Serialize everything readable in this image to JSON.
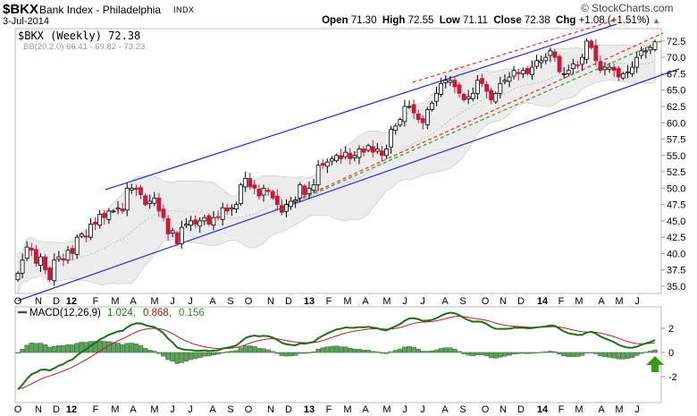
{
  "header": {
    "symbol": "$BKX",
    "name": "Bank Index - Philadelphia",
    "exchange": "INDX",
    "date": "3-Jul-2014",
    "open_label": "Open",
    "open": "71.30",
    "high_label": "High",
    "high": "72.55",
    "low_label": "Low",
    "low": "71.11",
    "close_label": "Close",
    "close": "72.38",
    "chg_label": "Chg",
    "chg": "+1.08 (+1.51%)",
    "chg_arrow": "▲",
    "brand": "© StockCharts.com"
  },
  "colors": {
    "up": "#ffffff",
    "down": "#c8193c",
    "channel": "#2a2ad0",
    "red_dash": "#e03030",
    "green_dash": "#3a9a2a",
    "macd": "#1f6e1f",
    "signal": "#b22222",
    "hist": "#5fa05f",
    "arrow": "#3a9a10",
    "band": "#ececec"
  },
  "chart_data": [
    {
      "type": "candlestick",
      "title": "$BKX (Weekly) 72.38",
      "legend": [
        "$BKX (Weekly) 72.38",
        "BB(20,2.0) 66.41 - 69.82 - 73.23"
      ],
      "ylim": [
        33.5,
        74.5
      ],
      "yticks": [
        "35.0",
        "37.5",
        "40.0",
        "42.5",
        "45.0",
        "47.5",
        "50.0",
        "52.5",
        "55.0",
        "57.5",
        "60.0",
        "62.5",
        "65.0",
        "67.5",
        "70.0",
        "72.5"
      ],
      "xticks": [
        {
          "label": "O",
          "bold": false
        },
        {
          "label": "N",
          "bold": false
        },
        {
          "label": "D",
          "bold": false
        },
        {
          "label": "12",
          "bold": true
        },
        {
          "label": "F",
          "bold": false
        },
        {
          "label": "M",
          "bold": false
        },
        {
          "label": "A",
          "bold": false
        },
        {
          "label": "M",
          "bold": false
        },
        {
          "label": "J",
          "bold": false
        },
        {
          "label": "J",
          "bold": false
        },
        {
          "label": "A",
          "bold": false
        },
        {
          "label": "S",
          "bold": false
        },
        {
          "label": "O",
          "bold": false
        },
        {
          "label": "N",
          "bold": false
        },
        {
          "label": "D",
          "bold": false
        },
        {
          "label": "13",
          "bold": true
        },
        {
          "label": "F",
          "bold": false
        },
        {
          "label": "M",
          "bold": false
        },
        {
          "label": "A",
          "bold": false
        },
        {
          "label": "M",
          "bold": false
        },
        {
          "label": "J",
          "bold": false
        },
        {
          "label": "J",
          "bold": false
        },
        {
          "label": "A",
          "bold": false
        },
        {
          "label": "S",
          "bold": false
        },
        {
          "label": "O",
          "bold": false
        },
        {
          "label": "N",
          "bold": false
        },
        {
          "label": "D",
          "bold": false
        },
        {
          "label": "14",
          "bold": true
        },
        {
          "label": "F",
          "bold": false
        },
        {
          "label": "M",
          "bold": false
        },
        {
          "label": "A",
          "bold": false
        },
        {
          "label": "M",
          "bold": false
        },
        {
          "label": "J",
          "bold": false
        }
      ],
      "closes": [
        37,
        39,
        41,
        40.5,
        38.5,
        39.5,
        37.5,
        36,
        39,
        39.5,
        39,
        40.5,
        40,
        42.5,
        43,
        42.5,
        44.5,
        44.5,
        46,
        45.5,
        46.5,
        46.5,
        47,
        46.5,
        50,
        50,
        49.8,
        49,
        47.5,
        48,
        48.5,
        46.5,
        45.5,
        43,
        43.5,
        41.5,
        44,
        44.5,
        45,
        44.5,
        45,
        45.5,
        44.5,
        45.5,
        45.5,
        47,
        46.5,
        47,
        47.5,
        50.5,
        51.5,
        50.2,
        50,
        48.8,
        50,
        49.5,
        48.5,
        47.5,
        46.3,
        47.5,
        48,
        48.2,
        50.5,
        49,
        50,
        50.5,
        53.5,
        53.5,
        54,
        54.5,
        55,
        54.5,
        55.5,
        54.5,
        55,
        56,
        55.5,
        56.5,
        55.5,
        56,
        55,
        56,
        59,
        59.5,
        60.5,
        62.5,
        62.5,
        61.5,
        60.5,
        60,
        62,
        63,
        64.5,
        66,
        66.5,
        66.5,
        65.5,
        64.5,
        63.5,
        64,
        64.5,
        66.5,
        66,
        64.8,
        63.5,
        64.5,
        66,
        66.5,
        67,
        68,
        67.5,
        68,
        67.5,
        68.5,
        69.5,
        69.5,
        70,
        71,
        70,
        67.8,
        67.5,
        68,
        69,
        68.8,
        70,
        72.5,
        71.5,
        69.5,
        68,
        68.5,
        68.5,
        68,
        67,
        67.5,
        67.8,
        68.5,
        70,
        71,
        71,
        71.5,
        72.38
      ]
    },
    {
      "type": "line",
      "title": "MACD(12,26,9)",
      "legend": {
        "label": "MACD(12,26,9)",
        "macd": "1.024,",
        "signal": "0.868,",
        "hist": "0.156"
      },
      "ylim": [
        -4,
        3.8
      ],
      "yticks": [
        "2",
        "0",
        "-2"
      ]
    }
  ]
}
